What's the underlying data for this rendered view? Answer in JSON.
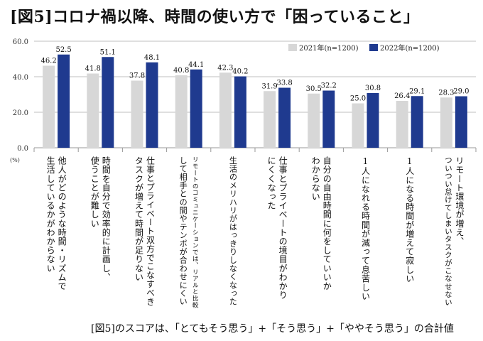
{
  "title": "[図5]コロナ禍以降、時間の使い方で「困っていること」",
  "footnote": "[図5]のスコアは、「とてもそう思う」+「そう思う」+「ややそう思う」の合計値",
  "unit_label": "(%)",
  "colors": {
    "series_2021": "#d7d7d7",
    "series_2022": "#1f3a8f",
    "grid": "#bfbfbf"
  },
  "chart_data": {
    "type": "bar",
    "ylim": [
      0,
      60
    ],
    "yticks": [
      "0.0",
      "20.0",
      "40.0",
      "60.0"
    ],
    "ytick_values": [
      0,
      20,
      40,
      60
    ],
    "grid": true,
    "legend_position": "top-right",
    "categories": [
      [
        "他人がどのような時間・リズムで",
        "生活しているかがわからない"
      ],
      [
        "時間を自分で効率的に計画し、",
        "使うことが難しい"
      ],
      [
        "仕事とプライベート双方でこなすべき",
        "タスクが増えて時間が足りない"
      ],
      [
        "リモートのコミュニケーションでは、リアルと比較",
        "して相手との間やテンポが合わせにくい"
      ],
      [
        "生活のメリハリがはっきりしなくなった"
      ],
      [
        "仕事とプライベートの境目がわかり",
        "にくくなった"
      ],
      [
        "自分の自由時間に何をしていいか",
        "わからない"
      ],
      [
        "1人になれる時間が減って息苦しい"
      ],
      [
        "1人になる時間が増えて寂しい"
      ],
      [
        "リモート環境が増え、",
        "ついつい怠けてしまいタスクがこなせない"
      ]
    ],
    "series": [
      {
        "name": "2021年(n=1200)",
        "values": [
          46.2,
          41.8,
          37.8,
          40.8,
          42.3,
          31.9,
          30.5,
          25.0,
          26.4,
          28.3
        ],
        "labels": [
          "46.2",
          "41.8",
          "37.8",
          "40.8",
          "42.3",
          "31.9",
          "30.5",
          "25.0",
          "26.4",
          "28.3"
        ]
      },
      {
        "name": "2022年(n=1200)",
        "values": [
          52.5,
          51.1,
          48.1,
          44.1,
          40.2,
          33.8,
          32.2,
          30.8,
          29.1,
          29.0
        ],
        "labels": [
          "52.5",
          "51.1",
          "48.1",
          "44.1",
          "40.2",
          "33.8",
          "32.2",
          "30.8",
          "29.1",
          "29.0"
        ]
      }
    ]
  }
}
